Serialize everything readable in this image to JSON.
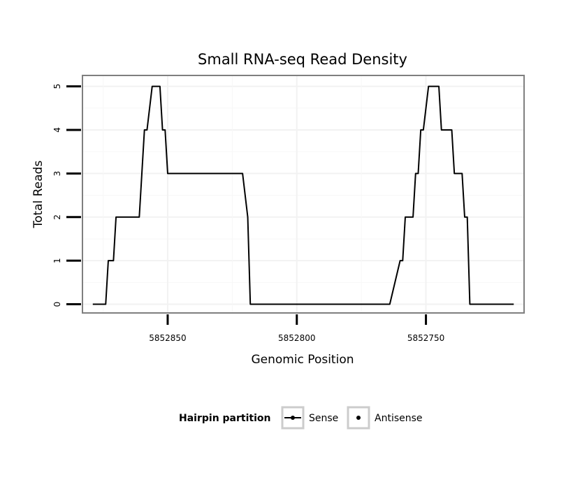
{
  "chart_data": {
    "type": "line",
    "title": "Small RNA-seq Read Density",
    "xlabel": "Genomic Position",
    "ylabel": "Total Reads",
    "xlim": [
      5852883,
      5852712
    ],
    "ylim": [
      -0.2,
      5.25
    ],
    "x_reversed": true,
    "x_ticks": [
      5852850,
      5852800,
      5852750
    ],
    "x_tick_labels": [
      "5852850",
      "5852800",
      "5852750"
    ],
    "y_ticks": [
      0,
      1,
      2,
      3,
      4,
      5
    ],
    "y_tick_labels": [
      "0",
      "1",
      "2",
      "3",
      "4",
      "5"
    ],
    "grid": true,
    "legend": {
      "title": "Hairpin partition",
      "position": "bottom",
      "entries": [
        "Sense",
        "Antisense"
      ]
    },
    "series": [
      {
        "name": "Sense",
        "color": "#000000",
        "x": [
          5852879,
          5852874,
          5852873,
          5852871,
          5852870,
          5852868,
          5852863,
          5852861,
          5852860,
          5852859,
          5852858,
          5852856,
          5852855,
          5852853,
          5852852,
          5852851,
          5852850,
          5852849,
          5852848,
          5852847,
          5852823,
          5852821,
          5852819,
          5852818,
          5852816,
          5852814,
          5852813,
          5852812,
          5852810,
          5852808,
          5852807,
          5852805,
          5852803,
          5852802,
          5852801,
          5852797,
          5852796,
          5852795,
          5852794,
          5852792,
          5852788,
          5852787,
          5852785,
          5852784,
          5852777,
          5852776,
          5852775,
          5852772,
          5852770,
          5852769,
          5852768,
          5852767,
          5852766,
          5852765,
          5852764,
          5852760,
          5852759,
          5852758,
          5852755,
          5852754,
          5852753,
          5852752,
          5852751,
          5852749,
          5852748,
          5852746,
          5852745,
          5852744,
          5852740,
          5852739,
          5852737,
          5852736,
          5852735,
          5852734,
          5852733,
          5852732,
          5852731,
          5852730,
          5852729,
          5852727,
          5852726,
          5852725,
          5852724,
          5852723,
          5852722,
          5852721,
          5852720,
          5852719,
          5852718,
          5852717,
          5852716
        ],
        "values": [
          0,
          0,
          1,
          1,
          2,
          2,
          2,
          2,
          3,
          4,
          4,
          5,
          5,
          5,
          4,
          4,
          3,
          3,
          3,
          3,
          3,
          3,
          2,
          0,
          0,
          0,
          0,
          0,
          0,
          0,
          0,
          0,
          0,
          0,
          0,
          0,
          0,
          0,
          0,
          0,
          0,
          0,
          0,
          0,
          0,
          0,
          0,
          0,
          0,
          0,
          0,
          0,
          0,
          0,
          0,
          1,
          1,
          2,
          2,
          3,
          3,
          4,
          4,
          5,
          5,
          5,
          5,
          4,
          4,
          3,
          3,
          3,
          2,
          2,
          0,
          0,
          0,
          0,
          0,
          0,
          0,
          0,
          0,
          0,
          0,
          0,
          0,
          0,
          0,
          0,
          0
        ]
      }
    ]
  }
}
